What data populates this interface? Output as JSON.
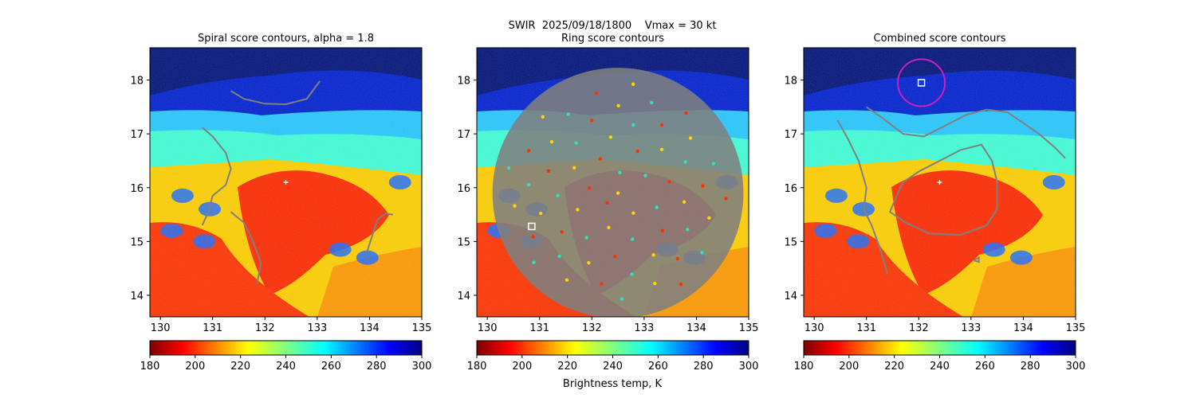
{
  "figure": {
    "suptitle": "SWIR  2025/09/18/1800    Vmax = 30 kt",
    "colorbar_label": "Brightness temp, K"
  },
  "chart_data": [
    {
      "type": "heatmap",
      "title": "Spiral score contours, alpha =  1.8",
      "xlim": [
        129.8,
        135.0
      ],
      "ylim": [
        13.6,
        18.6
      ],
      "xticks": [
        130,
        131,
        132,
        133,
        134,
        135
      ],
      "yticks": [
        14,
        15,
        16,
        17,
        18
      ],
      "colorbar": {
        "ticks": [
          180,
          200,
          220,
          240,
          260,
          280,
          300
        ],
        "colormap": "jet_r",
        "range": [
          180,
          300
        ]
      },
      "center_marker": {
        "lon": 132.4,
        "lat": 16.1,
        "symbol": "+"
      },
      "contours": [
        {
          "color": "#808080",
          "points": [
            [
              131.35,
              17.8
            ],
            [
              131.6,
              17.65
            ],
            [
              132.0,
              17.56
            ],
            [
              132.4,
              17.55
            ],
            [
              132.8,
              17.65
            ],
            [
              133.05,
              17.98
            ]
          ]
        },
        {
          "color": "#808080",
          "points": [
            [
              130.8,
              17.12
            ],
            [
              131.0,
              16.95
            ],
            [
              131.25,
              16.65
            ],
            [
              131.35,
              16.35
            ],
            [
              131.25,
              16.05
            ],
            [
              131.0,
              15.85
            ],
            [
              130.92,
              15.55
            ],
            [
              130.8,
              15.3
            ]
          ]
        },
        {
          "color": "#808080",
          "points": [
            [
              131.35,
              15.55
            ],
            [
              131.6,
              15.35
            ],
            [
              131.75,
              15.05
            ],
            [
              131.85,
              14.8
            ],
            [
              131.92,
              14.6
            ],
            [
              131.85,
              14.2
            ]
          ]
        },
        {
          "color": "#808080",
          "points": [
            [
              133.95,
              14.8
            ],
            [
              134.05,
              15.1
            ],
            [
              134.15,
              15.4
            ],
            [
              134.3,
              15.52
            ],
            [
              134.45,
              15.5
            ]
          ]
        }
      ]
    },
    {
      "type": "heatmap",
      "title": "Ring score contours",
      "xlim": [
        129.8,
        135.0
      ],
      "ylim": [
        13.6,
        18.6
      ],
      "xticks": [
        130,
        131,
        132,
        133,
        134,
        135
      ],
      "yticks": [
        14,
        15,
        16,
        17,
        18
      ],
      "colorbar": {
        "ticks": [
          180,
          200,
          220,
          240,
          260,
          280,
          300
        ],
        "colormap": "jet_r",
        "range": [
          180,
          300
        ]
      },
      "center_marker": {
        "lon": 130.85,
        "lat": 15.28,
        "symbol": "square"
      },
      "contour_region": {
        "type": "dense-ring-contours",
        "color": "#808080",
        "center": [
          132.5,
          15.9
        ],
        "radius_deg": 2.4
      }
    },
    {
      "type": "heatmap",
      "title": "Combined score contours",
      "xlim": [
        129.8,
        135.0
      ],
      "ylim": [
        13.6,
        18.6
      ],
      "xticks": [
        130,
        131,
        132,
        133,
        134,
        135
      ],
      "yticks": [
        14,
        15,
        16,
        17,
        18
      ],
      "colorbar": {
        "ticks": [
          180,
          200,
          220,
          240,
          260,
          280,
          300
        ],
        "colormap": "jet_r",
        "range": [
          180,
          300
        ]
      },
      "center_marker": {
        "lon": 132.4,
        "lat": 16.1,
        "symbol": "+"
      },
      "best_center": {
        "lon": 132.05,
        "lat": 17.95,
        "symbol": "square",
        "ring_color": "#cc1fbf",
        "ring_radius_deg": 0.45
      },
      "contours": [
        {
          "color": "#808080",
          "points": [
            [
              131.0,
              17.5
            ],
            [
              131.3,
              17.3
            ],
            [
              131.7,
              17.0
            ],
            [
              132.1,
              16.95
            ],
            [
              132.5,
              17.15
            ],
            [
              132.9,
              17.35
            ],
            [
              133.3,
              17.45
            ],
            [
              133.7,
              17.4
            ],
            [
              134.0,
              17.2
            ],
            [
              134.3,
              17.0
            ],
            [
              134.6,
              16.75
            ],
            [
              134.8,
              16.55
            ]
          ]
        },
        {
          "color": "#808080",
          "points": [
            [
              131.7,
              16.1
            ],
            [
              132.0,
              16.3
            ],
            [
              132.4,
              16.5
            ],
            [
              132.8,
              16.7
            ],
            [
              133.2,
              16.8
            ],
            [
              133.4,
              16.5
            ],
            [
              133.5,
              16.1
            ],
            [
              133.5,
              15.6
            ],
            [
              133.3,
              15.3
            ],
            [
              132.8,
              15.12
            ],
            [
              132.2,
              15.15
            ],
            [
              131.75,
              15.35
            ],
            [
              131.45,
              15.55
            ],
            [
              131.6,
              15.9
            ],
            [
              131.7,
              16.1
            ]
          ]
        },
        {
          "color": "#808080",
          "points": [
            [
              130.45,
              17.25
            ],
            [
              130.65,
              16.9
            ],
            [
              130.85,
              16.5
            ],
            [
              131.0,
              16.0
            ],
            [
              130.95,
              15.6
            ],
            [
              131.1,
              15.3
            ],
            [
              131.25,
              14.9
            ],
            [
              131.4,
              14.4
            ]
          ]
        },
        {
          "color": "#808080",
          "points": [
            [
              133.05,
              14.65
            ],
            [
              133.15,
              14.7
            ],
            [
              133.15,
              14.62
            ],
            [
              133.05,
              14.65
            ]
          ]
        }
      ]
    }
  ]
}
